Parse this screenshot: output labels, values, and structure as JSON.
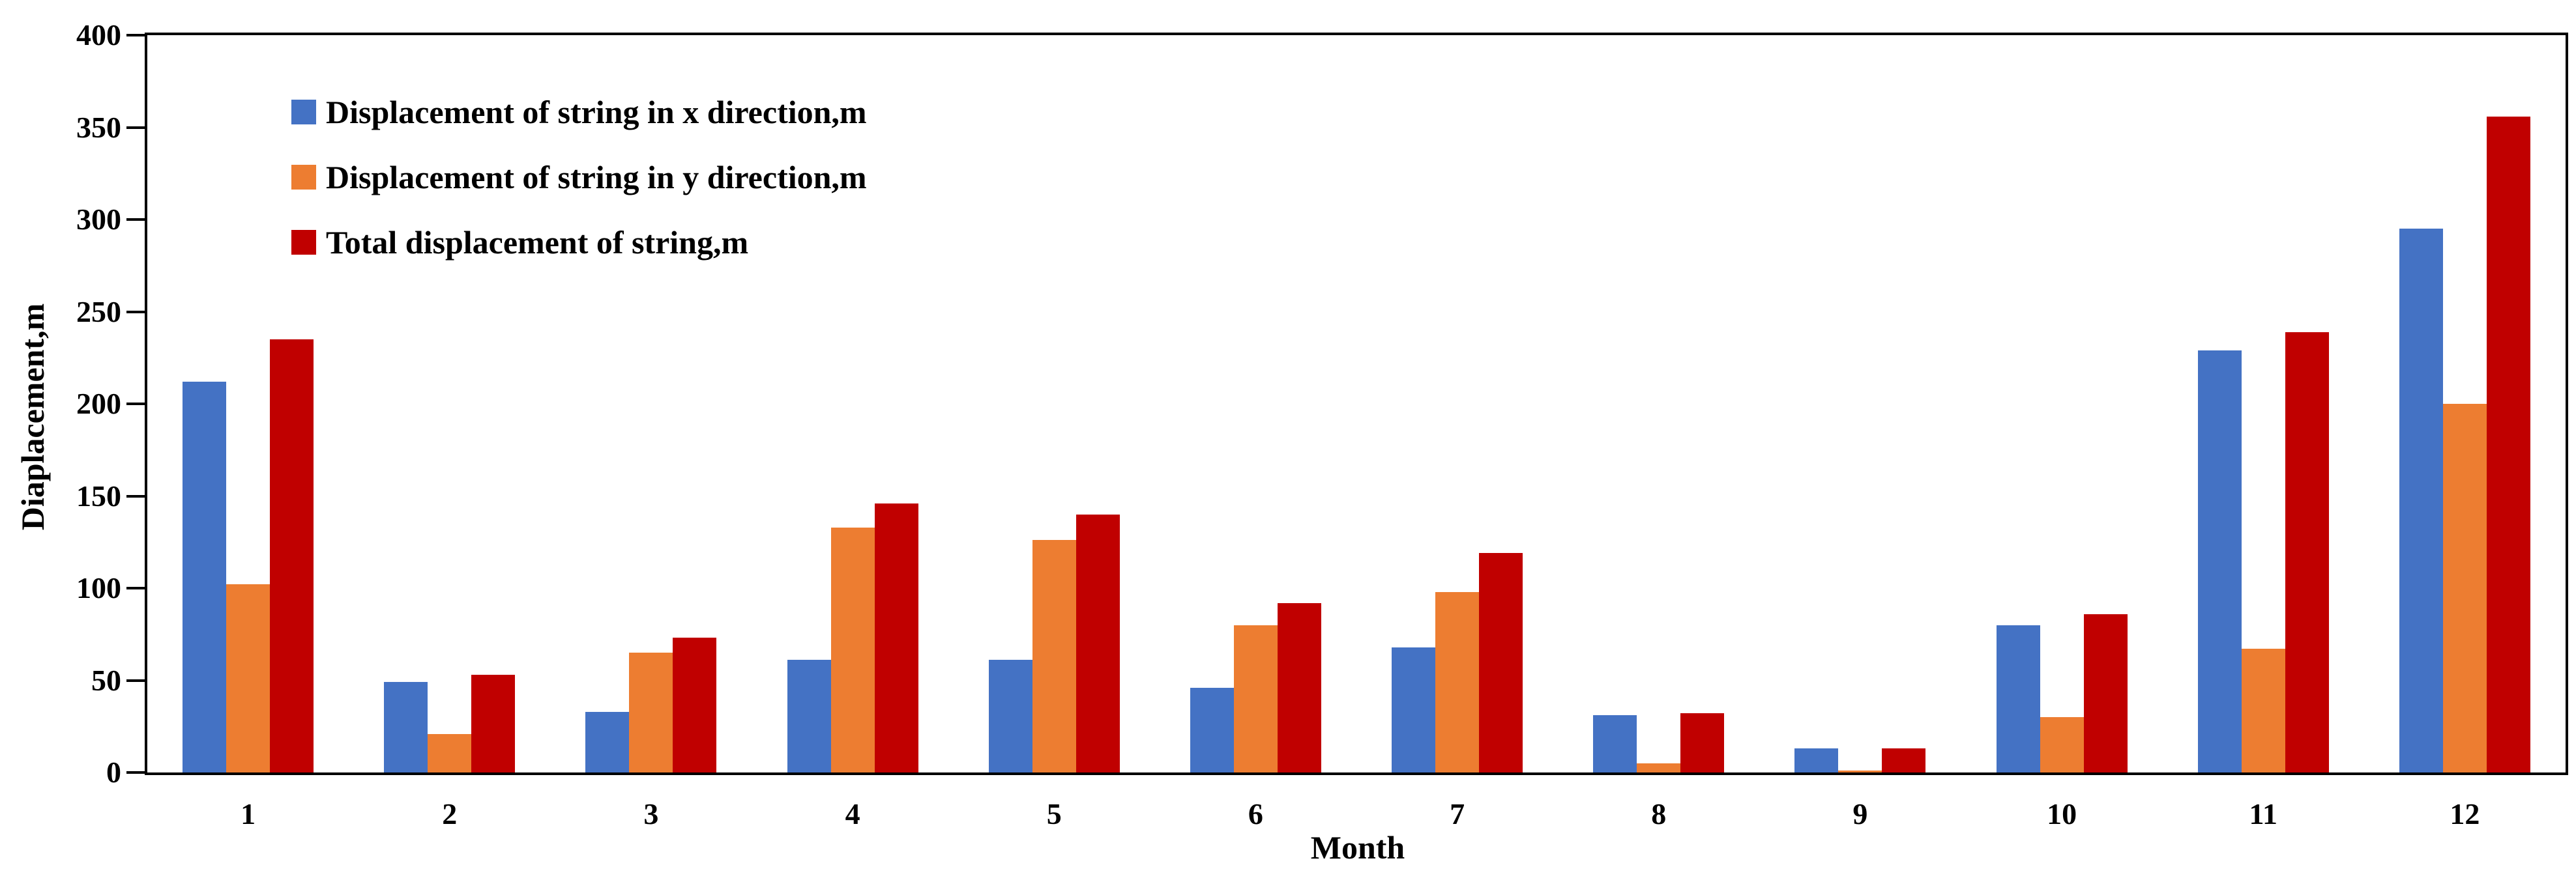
{
  "chart_data": {
    "type": "bar",
    "title": "",
    "xlabel": "Month",
    "ylabel": "Diaplacement,m",
    "categories": [
      "1",
      "2",
      "3",
      "4",
      "5",
      "6",
      "7",
      "8",
      "9",
      "10",
      "11",
      "12"
    ],
    "series": [
      {
        "name": "Displacement of string in x direction,m",
        "color": "#4472C4",
        "values": [
          212,
          49,
          33,
          61,
          61,
          46,
          68,
          31,
          13,
          80,
          229,
          295
        ]
      },
      {
        "name": "Displacement of string in y direction,m",
        "color": "#ED7D31",
        "values": [
          102,
          21,
          65,
          133,
          126,
          80,
          98,
          5,
          1,
          30,
          67,
          200
        ]
      },
      {
        "name": "Total displacement of string,m",
        "color": "#C00000",
        "values": [
          235,
          53,
          73,
          146,
          140,
          92,
          119,
          32,
          13,
          86,
          239,
          356
        ]
      }
    ],
    "ylim": [
      0,
      400
    ],
    "y_ticks": [
      "0",
      "50",
      "100",
      "150",
      "200",
      "250",
      "300",
      "350",
      "400"
    ],
    "grid": false,
    "legend_position": "top-left-inside",
    "axis_color": "#000000",
    "background_color": "#FFFFFF"
  }
}
